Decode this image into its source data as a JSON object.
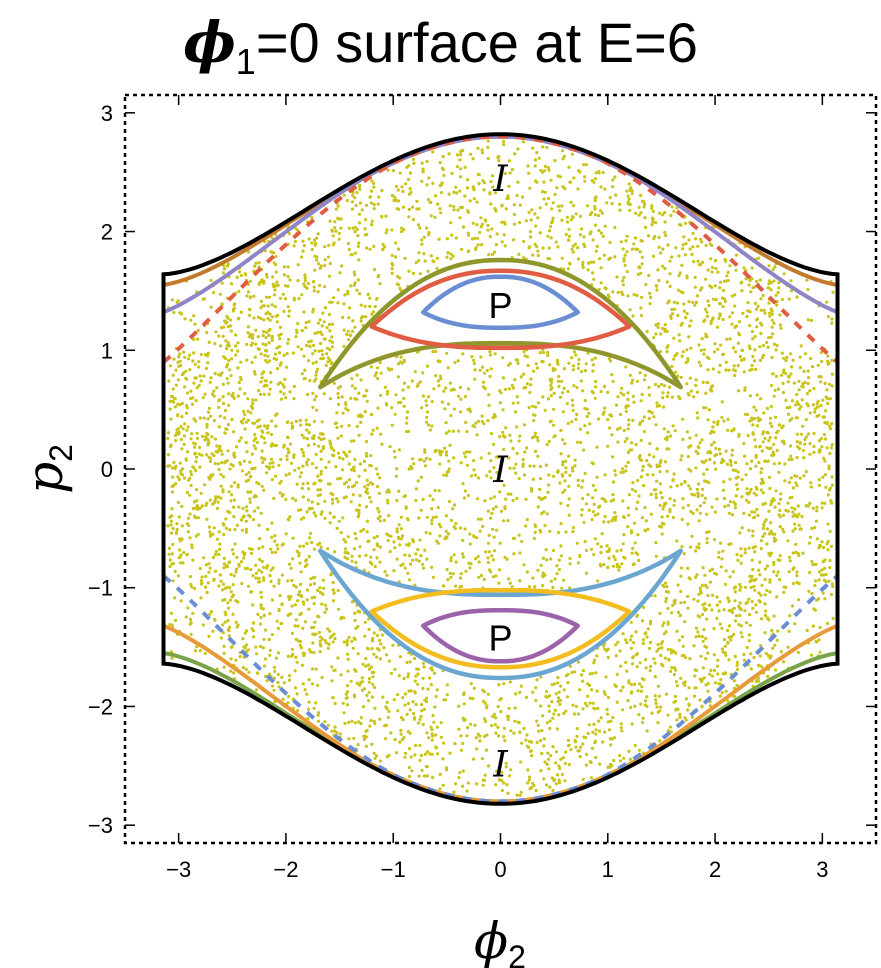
{
  "chart_data": {
    "type": "scatter",
    "title": {
      "symbol": "ϕ",
      "subscript": "1",
      "rest": "=0 surface at E=6"
    },
    "xlabel": {
      "symbol": "ϕ",
      "subscript": "2"
    },
    "ylabel": {
      "symbol": "p",
      "subscript": "2"
    },
    "xlim": [
      -3.5,
      3.5
    ],
    "ylim": [
      -3.15,
      3.15
    ],
    "x_ticks": [
      -3,
      -2,
      -1,
      0,
      1,
      2,
      3
    ],
    "y_ticks": [
      -3,
      -2,
      -1,
      0,
      1,
      2,
      3
    ],
    "x_tick_labels": [
      "−3",
      "−2",
      "−1",
      "0",
      "1",
      "2",
      "3"
    ],
    "y_tick_labels": [
      "−3",
      "−2",
      "−1",
      "0",
      "1",
      "2",
      "3"
    ],
    "grid": false,
    "frame": "dashed",
    "energy_boundary": {
      "peak": 2.82,
      "edge_x": 3.1416,
      "edge_p": 1.64
    },
    "chaotic_sea": {
      "color": "#c8c41a",
      "point_count": 5200
    },
    "island_curves": [
      {
        "color": "#8f972c",
        "sign": 1,
        "x_half_width": 1.68,
        "top": 1.76,
        "bottom": 1.06,
        "tip": 0.69
      },
      {
        "color": "#e05c43",
        "sign": 1,
        "x_half_width": 1.2,
        "top": 1.67,
        "bottom": 1.02,
        "tip": 1.2
      },
      {
        "color": "#6b8ed3",
        "sign": 1,
        "x_half_width": 0.72,
        "top": 1.62,
        "bottom": 1.19,
        "tip": 1.32
      },
      {
        "color": "#6aa6d0",
        "sign": -1,
        "x_half_width": 1.68,
        "top": 1.76,
        "bottom": 1.06,
        "tip": 0.69
      },
      {
        "color": "#f4bd1f",
        "sign": -1,
        "x_half_width": 1.2,
        "top": 1.67,
        "bottom": 1.02,
        "tip": 1.2
      },
      {
        "color": "#9c62aa",
        "sign": -1,
        "x_half_width": 0.72,
        "top": 1.62,
        "bottom": 1.19,
        "tip": 1.32
      }
    ],
    "edge_curves": [
      {
        "color": "#c27a2d",
        "sign": 1,
        "inset": 0.06,
        "edge_p": 1.55,
        "dashed": false
      },
      {
        "color": "#8f84c6",
        "sign": 1,
        "inset": 0.1,
        "edge_p": 1.32,
        "dashed": false
      },
      {
        "color": "#e05c43",
        "sign": 1,
        "inset": 0.25,
        "edge_p": 0.9,
        "dashed": true
      },
      {
        "color": "#79a348",
        "sign": -1,
        "inset": 0.06,
        "edge_p": 1.55,
        "dashed": false
      },
      {
        "color": "#e69a39",
        "sign": -1,
        "inset": 0.1,
        "edge_p": 1.32,
        "dashed": false
      },
      {
        "color": "#6b8ed3",
        "sign": -1,
        "inset": 0.25,
        "edge_p": 0.9,
        "dashed": true
      }
    ],
    "annotations": [
      {
        "text": "I",
        "kind": "I",
        "x": 0,
        "y": 2.45
      },
      {
        "text": "P",
        "kind": "P",
        "x": 0,
        "y": 1.38
      },
      {
        "text": "I",
        "kind": "I",
        "x": 0,
        "y": 0.0
      },
      {
        "text": "P",
        "kind": "P",
        "x": 0,
        "y": -1.42
      },
      {
        "text": "I",
        "kind": "I",
        "x": 0,
        "y": -2.48
      }
    ]
  }
}
